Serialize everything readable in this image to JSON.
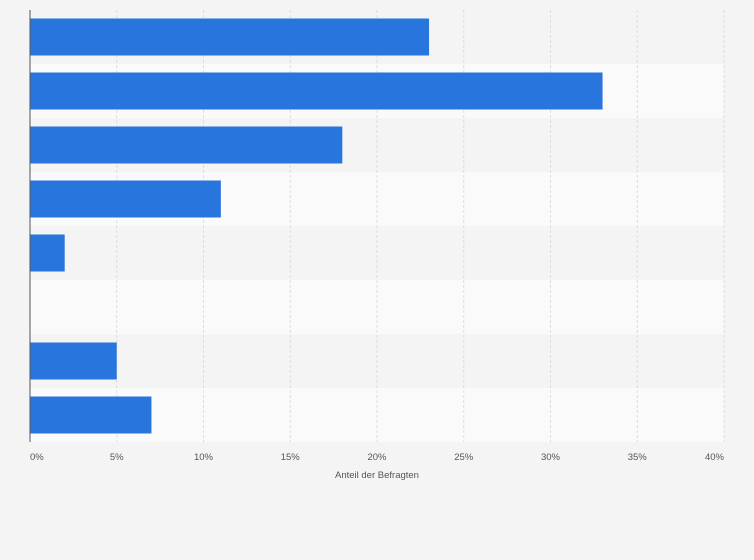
{
  "chart_data": {
    "type": "bar",
    "orientation": "horizontal",
    "categories": [
      "",
      "",
      "",
      "",
      "",
      "",
      "",
      ""
    ],
    "values": [
      23,
      33,
      18,
      11,
      2,
      0,
      5,
      7
    ],
    "xlabel": "Anteil der Befragten",
    "xlim": [
      0,
      40
    ],
    "x_ticks": [
      0,
      5,
      10,
      15,
      20,
      25,
      30,
      35,
      40
    ],
    "x_tick_labels": [
      "0%",
      "5%",
      "10%",
      "15%",
      "20%",
      "25%",
      "30%",
      "35%",
      "40%"
    ],
    "grid": true,
    "legend": "none",
    "colors": {
      "bar": "#2876dd",
      "band_even": "#f4f4f4",
      "band_odd": "#fafafa",
      "grid": "#dddddd",
      "axis": "#555555",
      "background": "#f4f4f4"
    }
  }
}
